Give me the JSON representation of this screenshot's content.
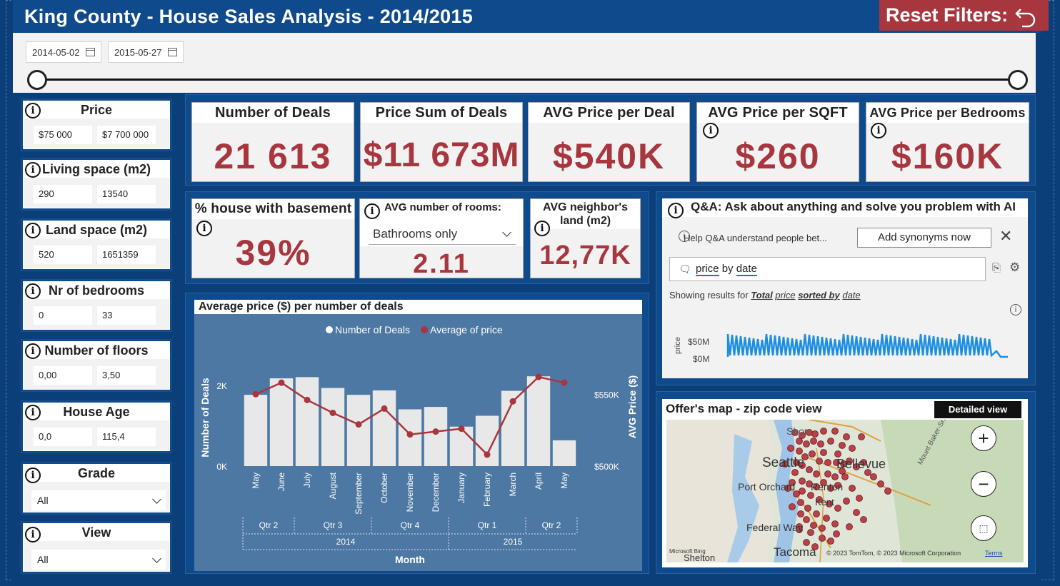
{
  "header": {
    "title": "King County - House Sales Analysis - 2014/2015",
    "reset_label": "Reset Filters:"
  },
  "date_filter": {
    "start": "2014-05-02",
    "end": "2015-05-27"
  },
  "slicers": {
    "price": {
      "title": "Price",
      "min": "$75 000",
      "max": "$7 700 000"
    },
    "living": {
      "title": "Living space (m2)",
      "min": "290",
      "max": "13540"
    },
    "land": {
      "title": "Land space (m2)",
      "min": "520",
      "max": "1651359"
    },
    "bedrooms": {
      "title": "Nr of bedrooms",
      "min": "0",
      "max": "33"
    },
    "floors": {
      "title": "Number of floors",
      "min": "0,00",
      "max": "3,50"
    },
    "age": {
      "title": "House Age",
      "min": "0,0",
      "max": "115,4"
    },
    "grade": {
      "title": "Grade",
      "value": "All"
    },
    "view": {
      "title": "View",
      "value": "All"
    }
  },
  "kpis": {
    "deals": {
      "title": "Number of Deals",
      "value": "21 613"
    },
    "price_sum": {
      "title": "Price Sum of Deals",
      "value": "$11 673M"
    },
    "avg_deal": {
      "title": "AVG Price per Deal",
      "value": "$540K"
    },
    "avg_sqft": {
      "title": "AVG Price per SQFT",
      "value": "$260"
    },
    "avg_bed": {
      "title": "AVG Price per Bedrooms",
      "value": "$160K"
    },
    "basement": {
      "title": "% house with basement",
      "value": "39%"
    },
    "rooms": {
      "title": "AVG number of rooms:",
      "dropdown": "Bathrooms only",
      "value": "2.11"
    },
    "neighbor": {
      "title_line1": "AVG neighbor's",
      "title_line2": "land (m2)",
      "value": "12,77K"
    }
  },
  "qa": {
    "title": "Q&A: Ask about anything and solve you problem with AI",
    "hint": "Help Q&A understand people bet...",
    "synonyms_btn": "Add synonyms now",
    "query_word1": "price",
    "query_mid": "by",
    "query_word2": "date",
    "showing_prefix": "Showing results for",
    "showing_total": "Total",
    "showing_price": "price",
    "showing_sorted": "sorted by",
    "showing_date": "date",
    "axis_label": "price",
    "tick_high": "$50M",
    "tick_low": "$0M"
  },
  "map": {
    "title": "Offer's map - zip code view",
    "detail_btn": "Detailed view",
    "labels": {
      "seattle": "Seattle",
      "bellevue": "Bellevue",
      "port_orchard": "Port Orchard",
      "renton": "Renton",
      "kent": "Kent",
      "federal_way": "Federal Way",
      "tacoma": "Tacoma",
      "shelton": "Shelton",
      "shoreline": "Shor",
      "mt_baker": "Mount Baker-Snoqualmie",
      "copyright": "© 2023 TomTom, © 2023 Microsoft Corporation",
      "terms": "Terms",
      "bing": "Microsoft Bing"
    }
  },
  "colors": {
    "accent_red": "#a8363f",
    "navy": "#0a3f7a",
    "chart_bg": "#4d78a3",
    "bar": "#e8e8e8",
    "line": "#a8363f"
  },
  "chart_data": {
    "type": "bar",
    "title": "Average price ($) per number of deals",
    "xlabel": "Month",
    "ylabel": "Number of Deals",
    "y2label": "AVG Price ($)",
    "legend": [
      "Number of Deals",
      "Average of price"
    ],
    "legend_position": "top-center",
    "categories": [
      "May",
      "June",
      "July",
      "August",
      "September",
      "October",
      "November",
      "December",
      "January",
      "February",
      "March",
      "April",
      "May"
    ],
    "quarters": [
      "Qtr 2",
      "Qtr 3",
      "Qtr 4",
      "Qtr 1",
      "Qtr 2"
    ],
    "years": [
      "2014",
      "2015"
    ],
    "y_ticks": [
      "0K",
      "2K"
    ],
    "y2_ticks": [
      "$500K",
      "$550K"
    ],
    "ylim": [
      0,
      2500
    ],
    "y2lim": [
      500000,
      570000
    ],
    "series": [
      {
        "name": "Number of Deals",
        "type": "bar",
        "values": [
          1770,
          2180,
          2210,
          1940,
          1770,
          1880,
          1410,
          1470,
          980,
          1250,
          1870,
          2230,
          640
        ]
      },
      {
        "name": "Average of price",
        "type": "line",
        "values": [
          550000,
          558000,
          546000,
          537000,
          529000,
          540000,
          522000,
          524000,
          526000,
          508000,
          545000,
          562000,
          558000
        ]
      }
    ]
  }
}
